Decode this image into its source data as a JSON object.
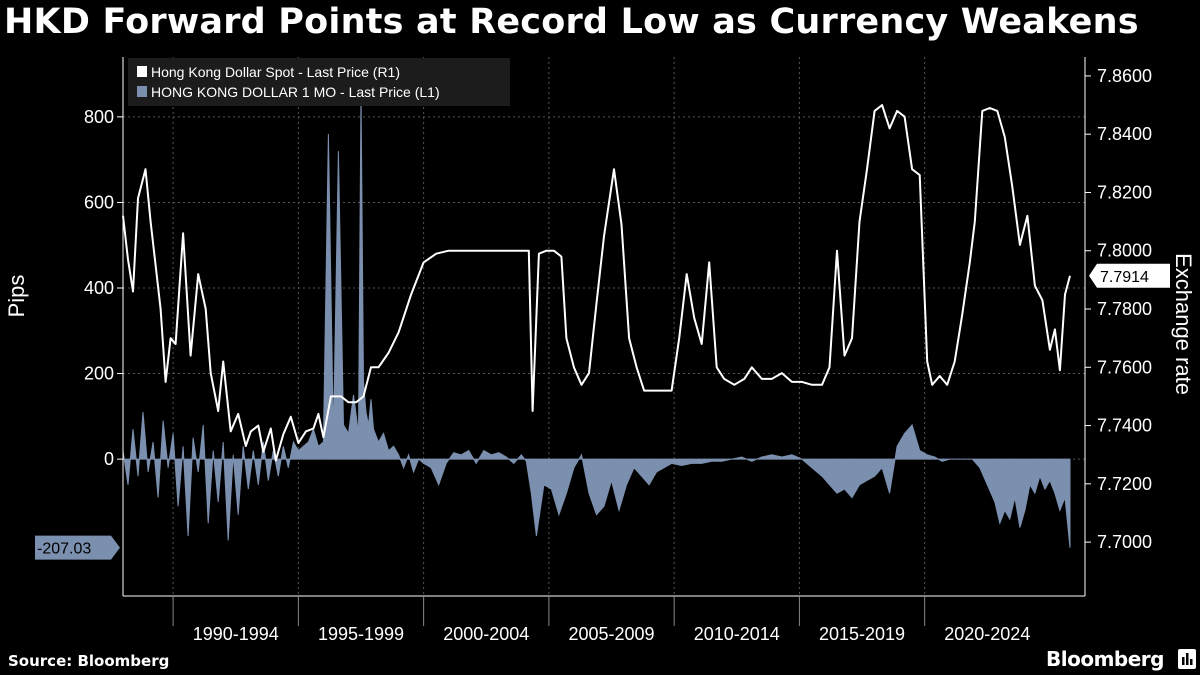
{
  "header": {
    "title": "HKD Forward Points at Record Low as Currency Weakens"
  },
  "footer": {
    "source": "Source: Bloomberg",
    "brand": "Bloomberg"
  },
  "colors": {
    "background": "#000000",
    "spot_series": "#ffffff",
    "forward_series": "#7b8fae",
    "grid": "#555555",
    "axis_text": "#ffffff"
  },
  "icons": [
    "terminal-logo-icon"
  ],
  "chart_data": {
    "type": "line",
    "title": "HKD Forward Points at Record Low as Currency Weakens",
    "x_categories": [
      "1990-1994",
      "1995-1999",
      "2000-2004",
      "2005-2009",
      "2010-2014",
      "2015-2019",
      "2020-2024"
    ],
    "x_range": [
      1988.0,
      2026.4
    ],
    "left_axis": {
      "label": "Pips",
      "ticks": [
        0,
        200,
        400,
        600,
        800
      ],
      "range": [
        -320,
        940
      ]
    },
    "right_axis": {
      "label": "Exchange rate",
      "ticks": [
        7.7,
        7.72,
        7.74,
        7.76,
        7.78,
        7.8,
        7.82,
        7.84,
        7.86
      ],
      "tick_labels": [
        "7.7000",
        "7.7200",
        "7.7400",
        "7.7600",
        "7.7800",
        "7.8000",
        "7.8200",
        "7.8400",
        "7.8600"
      ],
      "range": [
        7.6815,
        7.8665
      ]
    },
    "legend": {
      "position": "top-left",
      "entries": [
        "Hong Kong Dollar Spot - Last Price (R1)",
        "HONG KONG DOLLAR 1 MO - Last Price (L1)"
      ]
    },
    "last_value_labels": {
      "spot": "7.7914",
      "forward": "-207.03"
    },
    "series": [
      {
        "name": "Hong Kong Dollar Spot - Last Price (R1)",
        "axis": "right",
        "style": "line",
        "x": [
          1988.0,
          1988.2,
          1988.4,
          1988.6,
          1988.9,
          1989.1,
          1989.3,
          1989.5,
          1989.7,
          1989.9,
          1990.1,
          1990.4,
          1990.7,
          1991.0,
          1991.3,
          1991.5,
          1991.8,
          1992.0,
          1992.3,
          1992.6,
          1992.9,
          1993.1,
          1993.4,
          1993.6,
          1993.9,
          1994.1,
          1994.4,
          1994.7,
          1995.0,
          1995.3,
          1995.6,
          1995.8,
          1996.0,
          1996.3,
          1996.7,
          1997.0,
          1997.3,
          1997.6,
          1997.9,
          1998.2,
          1998.6,
          1999.0,
          1999.5,
          2000.0,
          2000.5,
          2001.0,
          2001.5,
          2002.0,
          2002.5,
          2003.0,
          2003.4,
          2003.8,
          2004.0,
          2004.2,
          2004.35,
          2004.6,
          2004.9,
          2005.2,
          2005.5,
          2005.7,
          2006.0,
          2006.3,
          2006.6,
          2006.9,
          2007.2,
          2007.6,
          2007.9,
          2008.2,
          2008.5,
          2008.8,
          2009.1,
          2009.5,
          2009.9,
          2010.2,
          2010.5,
          2010.8,
          2011.1,
          2011.4,
          2011.7,
          2012.0,
          2012.4,
          2012.8,
          2013.1,
          2013.5,
          2013.9,
          2014.3,
          2014.7,
          2015.1,
          2015.5,
          2015.9,
          2016.2,
          2016.5,
          2016.8,
          2017.1,
          2017.4,
          2017.7,
          2018.0,
          2018.3,
          2018.6,
          2018.9,
          2019.2,
          2019.5,
          2019.8,
          2020.1,
          2020.3,
          2020.6,
          2020.9,
          2021.2,
          2021.5,
          2021.8,
          2022.0,
          2022.3,
          2022.6,
          2022.9,
          2023.2,
          2023.5,
          2023.8,
          2024.1,
          2024.4,
          2024.7,
          2025.0,
          2025.2,
          2025.4,
          2025.6,
          2025.8
        ],
        "y": [
          7.812,
          7.797,
          7.786,
          7.818,
          7.828,
          7.81,
          7.795,
          7.78,
          7.755,
          7.77,
          7.768,
          7.806,
          7.764,
          7.792,
          7.78,
          7.758,
          7.745,
          7.762,
          7.738,
          7.744,
          7.733,
          7.738,
          7.74,
          7.731,
          7.739,
          7.728,
          7.737,
          7.743,
          7.734,
          7.738,
          7.739,
          7.744,
          7.736,
          7.75,
          7.75,
          7.748,
          7.748,
          7.75,
          7.76,
          7.76,
          7.765,
          7.772,
          7.785,
          7.796,
          7.799,
          7.8,
          7.8,
          7.8,
          7.8,
          7.8,
          7.8,
          7.8,
          7.8,
          7.8,
          7.745,
          7.799,
          7.8,
          7.8,
          7.798,
          7.77,
          7.76,
          7.754,
          7.758,
          7.782,
          7.805,
          7.828,
          7.809,
          7.77,
          7.76,
          7.752,
          7.752,
          7.752,
          7.752,
          7.77,
          7.792,
          7.777,
          7.768,
          7.796,
          7.76,
          7.756,
          7.754,
          7.756,
          7.76,
          7.756,
          7.756,
          7.758,
          7.755,
          7.755,
          7.754,
          7.754,
          7.76,
          7.8,
          7.764,
          7.77,
          7.81,
          7.828,
          7.848,
          7.85,
          7.842,
          7.848,
          7.846,
          7.828,
          7.826,
          7.762,
          7.754,
          7.757,
          7.754,
          7.762,
          7.778,
          7.796,
          7.81,
          7.848,
          7.849,
          7.848,
          7.839,
          7.822,
          7.802,
          7.812,
          7.788,
          7.783,
          7.766,
          7.773,
          7.759,
          7.785,
          7.7914
        ]
      },
      {
        "name": "HONG KONG DOLLAR 1 MO - Last Price (L1)",
        "axis": "left",
        "style": "area",
        "x": [
          1988.0,
          1988.2,
          1988.4,
          1988.6,
          1988.8,
          1989.0,
          1989.2,
          1989.4,
          1989.6,
          1989.8,
          1990.0,
          1990.2,
          1990.4,
          1990.6,
          1990.8,
          1991.0,
          1991.2,
          1991.4,
          1991.6,
          1991.8,
          1992.0,
          1992.2,
          1992.4,
          1992.6,
          1992.8,
          1993.0,
          1993.2,
          1993.4,
          1993.6,
          1993.8,
          1994.0,
          1994.2,
          1994.4,
          1994.6,
          1994.8,
          1995.0,
          1995.2,
          1995.4,
          1995.6,
          1995.8,
          1996.0,
          1996.2,
          1996.4,
          1996.6,
          1996.8,
          1997.0,
          1997.2,
          1997.4,
          1997.5,
          1997.6,
          1997.7,
          1997.8,
          1997.9,
          1998.0,
          1998.2,
          1998.4,
          1998.6,
          1998.8,
          1999.0,
          1999.2,
          1999.4,
          1999.6,
          1999.8,
          2000.0,
          2000.3,
          2000.6,
          2000.9,
          2001.2,
          2001.5,
          2001.8,
          2002.1,
          2002.4,
          2002.7,
          2003.0,
          2003.3,
          2003.6,
          2003.9,
          2004.1,
          2004.3,
          2004.5,
          2004.8,
          2005.1,
          2005.4,
          2005.7,
          2006.0,
          2006.3,
          2006.6,
          2006.9,
          2007.2,
          2007.5,
          2007.8,
          2008.1,
          2008.4,
          2008.7,
          2009.0,
          2009.3,
          2009.6,
          2009.9,
          2010.3,
          2010.7,
          2011.1,
          2011.5,
          2011.9,
          2012.3,
          2012.7,
          2013.1,
          2013.5,
          2013.9,
          2014.3,
          2014.7,
          2015.1,
          2015.5,
          2015.9,
          2016.2,
          2016.5,
          2016.8,
          2017.1,
          2017.4,
          2017.7,
          2018.0,
          2018.3,
          2018.6,
          2018.9,
          2019.2,
          2019.5,
          2019.8,
          2020.1,
          2020.4,
          2020.7,
          2021.0,
          2021.3,
          2021.6,
          2021.9,
          2022.2,
          2022.5,
          2022.8,
          2023.0,
          2023.2,
          2023.4,
          2023.6,
          2023.8,
          2024.0,
          2024.2,
          2024.4,
          2024.6,
          2024.8,
          2025.0,
          2025.2,
          2025.4,
          2025.6,
          2025.8
        ],
        "y": [
          20,
          -60,
          70,
          -40,
          110,
          -30,
          40,
          -90,
          90,
          -20,
          60,
          -110,
          30,
          -180,
          50,
          -30,
          80,
          -150,
          20,
          -100,
          40,
          -190,
          10,
          -130,
          30,
          -70,
          20,
          -60,
          40,
          -50,
          20,
          -40,
          30,
          -20,
          40,
          20,
          30,
          40,
          70,
          30,
          40,
          760,
          50,
          720,
          80,
          60,
          150,
          60,
          860,
          180,
          110,
          80,
          140,
          70,
          40,
          60,
          20,
          30,
          10,
          -20,
          10,
          -30,
          0,
          -10,
          -20,
          -60,
          -10,
          15,
          10,
          20,
          -10,
          20,
          10,
          15,
          5,
          -10,
          10,
          -5,
          -80,
          -180,
          -60,
          -70,
          -130,
          -80,
          -20,
          10,
          -80,
          -130,
          -110,
          -50,
          -120,
          -60,
          -20,
          -40,
          -60,
          -30,
          -20,
          -10,
          -15,
          -10,
          -10,
          -5,
          -5,
          0,
          5,
          -5,
          5,
          10,
          5,
          10,
          0,
          -20,
          -40,
          -60,
          -80,
          -70,
          -90,
          -60,
          -50,
          -40,
          -20,
          -80,
          30,
          60,
          80,
          20,
          10,
          5,
          -5,
          0,
          0,
          0,
          0,
          -20,
          -60,
          -100,
          -150,
          -120,
          -140,
          -90,
          -160,
          -120,
          -60,
          -80,
          -40,
          -70,
          -50,
          -80,
          -120,
          -90,
          -207.03
        ]
      }
    ]
  }
}
